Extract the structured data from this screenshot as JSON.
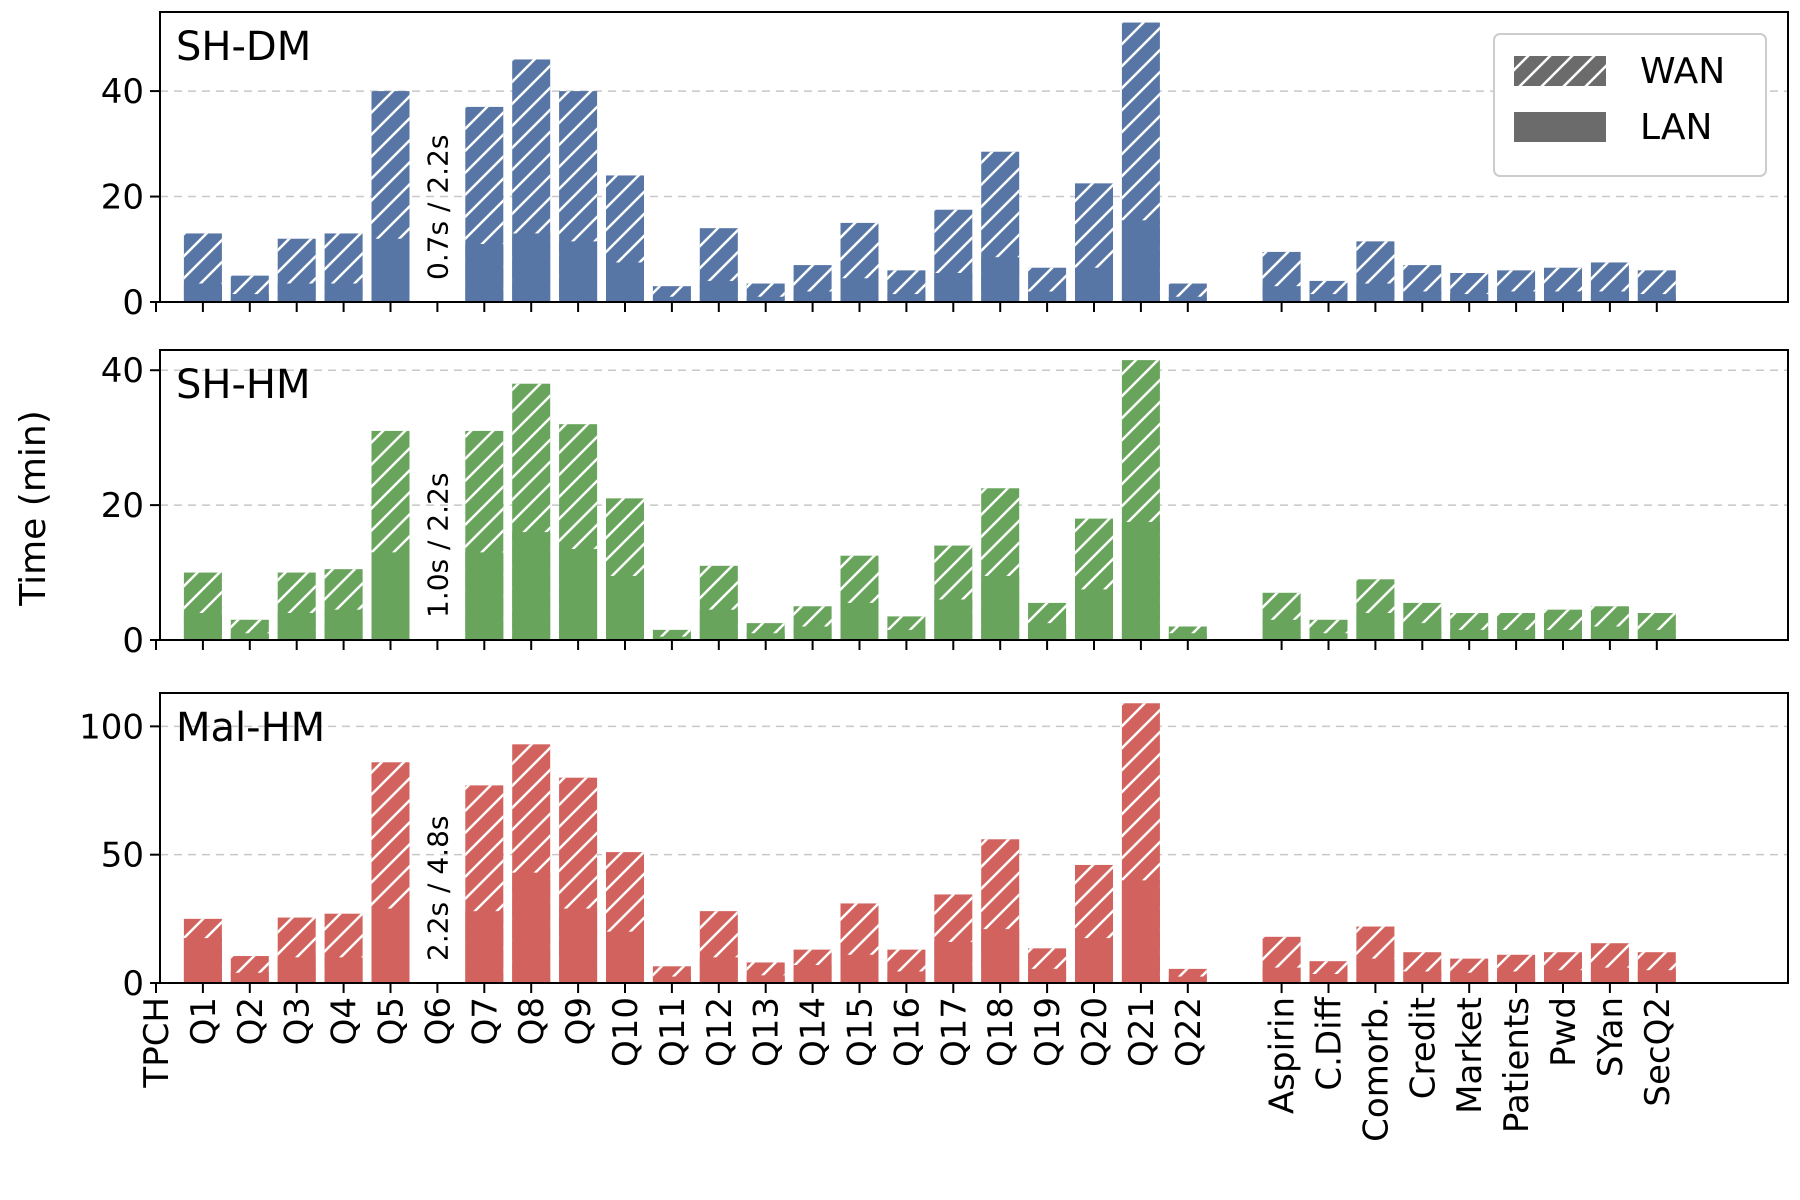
{
  "colors": {
    "SH-DM": "#5876a5",
    "SH-HM": "#68a45c",
    "Mal-HM": "#d2625e",
    "legend": "#6b6b6b",
    "grid": "#c8c8c8"
  },
  "chart_data": {
    "type": "bar",
    "stacked_hatched": true,
    "ylabel": "Time (min)",
    "legend": {
      "placement": "top-right",
      "entries": [
        "WAN",
        "LAN"
      ],
      "hatched": [
        true,
        false
      ]
    },
    "categories": [
      "TPCH",
      "Q1",
      "Q2",
      "Q3",
      "Q4",
      "Q5",
      "Q6",
      "Q7",
      "Q8",
      "Q9",
      "Q10",
      "Q11",
      "Q12",
      "Q13",
      "Q14",
      "Q15",
      "Q16",
      "Q17",
      "Q18",
      "Q19",
      "Q20",
      "Q21",
      "Q22",
      "",
      "Aspirin",
      "C.Diff",
      "Comorb.",
      "Credit",
      "Market",
      "Patients",
      "Pwd",
      "SYan",
      "SecQ2"
    ],
    "panels": [
      {
        "label": "SH-DM",
        "ylim": [
          0,
          55
        ],
        "yticks": [
          0,
          20,
          40
        ],
        "grid": [
          20,
          40
        ],
        "annotation": {
          "category": "Q6",
          "text": "0.7s / 2.2s"
        },
        "series": [
          {
            "name": "WAN",
            "values": [
              null,
              13,
              5,
              12,
              13,
              40,
              null,
              37,
              46,
              40,
              24,
              3,
              14,
              3.5,
              7,
              15,
              6,
              17.5,
              28.5,
              6.5,
              22.5,
              53,
              3.5,
              null,
              9.5,
              4,
              11.5,
              7,
              5.5,
              6,
              6.5,
              7.5,
              6
            ]
          },
          {
            "name": "LAN",
            "values": [
              null,
              3.5,
              1.5,
              3.5,
              3.5,
              12,
              null,
              11,
              13,
              11.5,
              7.5,
              1,
              4,
              1,
              2,
              4.5,
              1.5,
              5.5,
              8.5,
              2,
              6.5,
              15.5,
              1,
              null,
              3,
              1.5,
              3.5,
              2,
              1.5,
              2,
              2,
              2,
              1.5
            ]
          }
        ]
      },
      {
        "label": "SH-HM",
        "ylim": [
          0,
          43
        ],
        "yticks": [
          0,
          20,
          40
        ],
        "grid": [
          20,
          40
        ],
        "annotation": {
          "category": "Q6",
          "text": "1.0s / 2.2s"
        },
        "series": [
          {
            "name": "WAN",
            "values": [
              null,
              10,
              3,
              10,
              10.5,
              31,
              null,
              31,
              38,
              32,
              21,
              1.5,
              11,
              2.5,
              5,
              12.5,
              3.5,
              14,
              22.5,
              5.5,
              18,
              41.5,
              2,
              null,
              7,
              3,
              9,
              5.5,
              4,
              4,
              4.5,
              5,
              4
            ]
          },
          {
            "name": "LAN",
            "values": [
              null,
              4,
              1,
              4,
              4.5,
              13,
              null,
              13,
              16,
              13.5,
              9.5,
              0.5,
              4.5,
              1,
              2,
              5.5,
              1.5,
              6,
              9.5,
              2.5,
              7.5,
              17.5,
              1,
              null,
              3,
              1,
              4,
              2.5,
              1.5,
              1.5,
              1.5,
              2,
              1.5
            ]
          }
        ]
      },
      {
        "label": "Mal-HM",
        "ylim": [
          0,
          113
        ],
        "yticks": [
          0,
          50,
          100
        ],
        "grid": [
          50,
          100
        ],
        "annotation": {
          "category": "Q6",
          "text": "2.2s / 4.8s"
        },
        "series": [
          {
            "name": "WAN",
            "values": [
              null,
              25,
              10.5,
              25.5,
              27,
              86,
              null,
              77,
              93,
              80,
              51,
              6.5,
              28,
              8,
              13,
              31,
              13,
              34.5,
              56,
              13.5,
              46,
              109,
              5.5,
              null,
              18,
              8.5,
              22,
              12,
              9.5,
              11,
              12,
              15.5,
              12
            ]
          },
          {
            "name": "LAN",
            "values": [
              null,
              17.5,
              4,
              10,
              10,
              29,
              null,
              28,
              43,
              29,
              20,
              2.5,
              10,
              3,
              7,
              11,
              4.5,
              16,
              21,
              5.5,
              17.5,
              40,
              2.5,
              null,
              6,
              3.5,
              9.5,
              4.5,
              4,
              4.5,
              5,
              6,
              5
            ]
          }
        ]
      }
    ]
  }
}
